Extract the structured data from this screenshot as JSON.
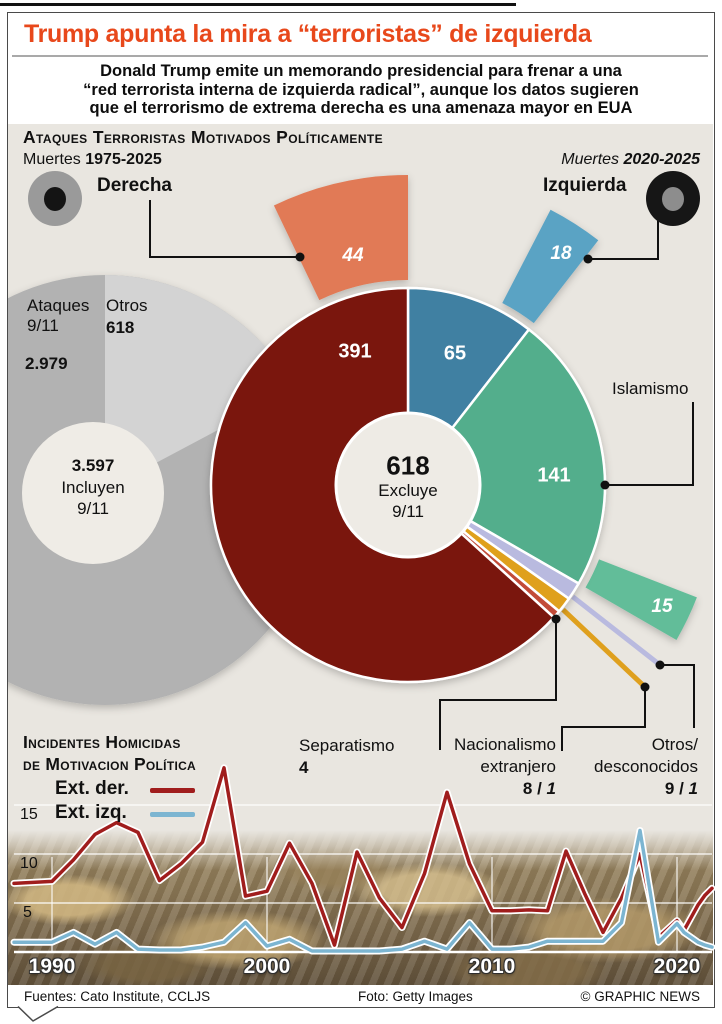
{
  "frame": {
    "headline": "Trump apunta la mira a “terroristas” de izquierda",
    "intro_lines": [
      "Donald Trump emite un memorando presidencial para frenar a una",
      "“red terrorista interna de izquierda radical”, aunque los datos sugieren",
      "que el terrorismo de extrema derecha es una amenaza mayor en EUA"
    ],
    "footer": {
      "sources": "Fuentes: Cato Institute, CCLJS",
      "photo_credit": "Foto: Getty Images",
      "copyright": "© GRAPHIC NEWS"
    }
  },
  "colors": {
    "headline_accent": "#e8481b",
    "panel_background": "#e9e6e0",
    "derecha": "#7a140e",
    "derecha_outer": "#e17a56",
    "izquierda": "#3f80a2",
    "izquierda_outer": "#5aa3c4",
    "islamismo": "#53ae8c",
    "islamismo_outer": "#62bd99",
    "otros_desconocidos": "#b9badf",
    "nacionalismo_extranjero": "#dfa01e",
    "separatismo": "#c24b38",
    "line_derecha": "#a01d1d",
    "line_izquierda": "#7cb5d1"
  },
  "donut_section": {
    "title": "Ataques Terroristas Motivados Políticamente",
    "legend_inner": {
      "prefix": "Muertes ",
      "range": "1975-2025"
    },
    "legend_outer": {
      "prefix": "Muertes ",
      "range": "2020-2025"
    },
    "icon_inner_ring": {
      "ring": "#9a9a9a",
      "hole": "#141414"
    },
    "icon_outer_ring": {
      "ring": "#161616",
      "hole": "#8d8d8d"
    },
    "callouts": {
      "derecha": "Derecha",
      "izquierda": "Izquierda",
      "islamismo": "Islamismo",
      "separatismo": {
        "label": "Separatismo",
        "value": "4"
      },
      "nacionalismo": {
        "line1": "Nacionalismo",
        "line2": "extranjero",
        "v1975": "8",
        "sep": " / ",
        "v2020": "1"
      },
      "otros": {
        "line1": "Otros/",
        "line2": "desconocidos",
        "v1975": "9",
        "sep": " / ",
        "v2020": "1"
      }
    },
    "values": {
      "derecha_inner": "391",
      "izquierda_inner": "65",
      "islamismo_inner": "141",
      "derecha_outer": "44",
      "izquierda_outer": "18",
      "islamismo_outer": "15"
    },
    "center": {
      "total": "618",
      "note1": "Excluye",
      "note2": "9/11"
    },
    "context": {
      "ataques_l1": "Ataques",
      "ataques_l2": "9/11",
      "ataques_value": "2.979",
      "otros_label": "Otros",
      "otros_value": "618",
      "incl_value": "3.597",
      "incl_l2": "Incluyen",
      "incl_l3": "9/11"
    }
  },
  "line_section": {
    "title_l1": "Incidentes Homicidas",
    "title_l2": "de Motivacion Política",
    "y_ticks": [
      "15",
      "10",
      "5"
    ],
    "x_ticks": [
      "1990",
      "2000",
      "2010",
      "2020"
    ]
  },
  "chart_data": [
    {
      "type": "pie",
      "variant": "double-donut",
      "title": "Ataques terroristas motivados políticamente",
      "inner_ring_label": "Muertes 1975-2025",
      "outer_ring_label": "Muertes 2020-2025",
      "total_excluding_911": 618,
      "total_including_911": 3597,
      "deaths_911_attacks": 2979,
      "segments": [
        {
          "label": "Izquierda",
          "muertes_1975_2025": 65,
          "muertes_2020_2025": 18,
          "color": "#3f80a2",
          "outer_color": "#5aa3c4"
        },
        {
          "label": "Islamismo",
          "muertes_1975_2025": 141,
          "muertes_2020_2025": 15,
          "color": "#53ae8c",
          "outer_color": "#62bd99"
        },
        {
          "label": "Otros/desconocidos",
          "muertes_1975_2025": 9,
          "muertes_2020_2025": 1,
          "color": "#b9badf",
          "outer_color": "#b9badf"
        },
        {
          "label": "Nacionalismo extranjero",
          "muertes_1975_2025": 8,
          "muertes_2020_2025": 1,
          "color": "#dfa01e",
          "outer_color": "#dfa01e"
        },
        {
          "label": "Separatismo",
          "muertes_1975_2025": 4,
          "muertes_2020_2025": 0,
          "color": "#c24b38",
          "outer_color": null
        },
        {
          "label": "Derecha",
          "muertes_1975_2025": 391,
          "muertes_2020_2025": 44,
          "color": "#7a140e",
          "outer_color": "#e17a56"
        }
      ]
    },
    {
      "type": "line",
      "title": "Incidentes homicidas de motivacion política",
      "ylim": [
        0,
        20
      ],
      "grid": true,
      "legend_position": "top-left",
      "x_ticks": [
        1990,
        2000,
        2010,
        2020
      ],
      "y_ticks": [
        5,
        10,
        15
      ],
      "years": [
        1989,
        1990,
        1991,
        1992,
        1993,
        1994,
        1995,
        1996,
        1997,
        1998,
        1999,
        2000,
        2001,
        2002,
        2003,
        2004,
        2005,
        2006,
        2007,
        2008,
        2009,
        2010,
        2011,
        2012,
        2013,
        2014,
        2015,
        2016,
        2017,
        2018,
        2019,
        2020,
        2021,
        2022,
        2023,
        2024,
        2025
      ],
      "series": [
        {
          "name": "Ext. der.",
          "color": "#a01d1d",
          "values": [
            7,
            7.2,
            9.4,
            12,
            13.2,
            12.2,
            7.3,
            9,
            11.2,
            18.8,
            5.7,
            6.2,
            11.1,
            7,
            0.7,
            10.2,
            5.5,
            2.5,
            8,
            16.3,
            9,
            4.2,
            4.2,
            4.3,
            4.2,
            10.3,
            6,
            2,
            5.5,
            10,
            1.5,
            3.2,
            2.2,
            3.5,
            4.8,
            5.8,
            6.5
          ]
        },
        {
          "name": "Ext. izq.",
          "color": "#7cb5d1",
          "values": [
            1,
            1,
            2,
            0.8,
            2,
            0.3,
            0.2,
            0.2,
            0.5,
            1,
            3,
            0.6,
            1.3,
            0.1,
            0.1,
            0.1,
            0.1,
            0.3,
            1.1,
            0.3,
            3,
            0.3,
            0.3,
            0.5,
            1.1,
            1.1,
            1.1,
            1.1,
            3,
            12.4,
            1,
            2.9,
            2,
            1.5,
            1,
            0.7,
            0.5
          ]
        }
      ]
    }
  ]
}
